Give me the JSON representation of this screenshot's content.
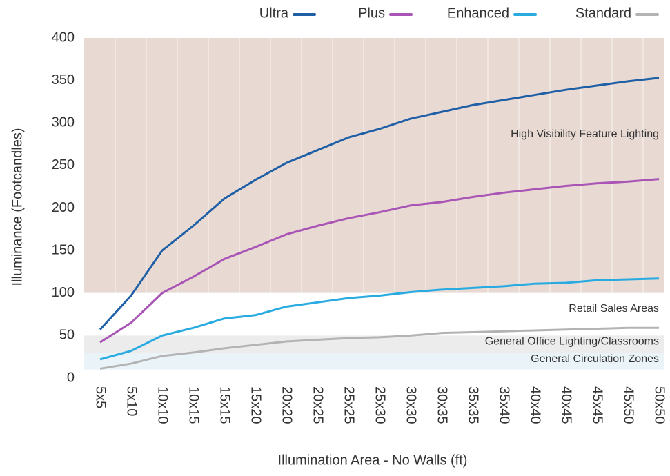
{
  "chart_data": {
    "type": "line",
    "x_label": "Illumination Area - No Walls (ft)",
    "y_label": "Illuminance (Footcandles)",
    "categories": [
      "5x5",
      "5x10",
      "10x10",
      "10x15",
      "15x15",
      "15x20",
      "20x20",
      "20x25",
      "25x25",
      "25x30",
      "30x30",
      "30x35",
      "35x35",
      "35x40",
      "40x40",
      "40x45",
      "45x45",
      "45x50",
      "50x50"
    ],
    "series": [
      {
        "name": "Ultra",
        "color": "#1f5fa6",
        "values": [
          57,
          97,
          150,
          179,
          211,
          233,
          253,
          268,
          283,
          293,
          305,
          313,
          321,
          327,
          333,
          339,
          344,
          349,
          353
        ]
      },
      {
        "name": "Plus",
        "color": "#a855b5",
        "values": [
          42,
          65,
          100,
          119,
          140,
          154,
          169,
          179,
          188,
          195,
          203,
          207,
          213,
          218,
          222,
          226,
          229,
          231,
          234
        ]
      },
      {
        "name": "Enhanced",
        "color": "#29abe2",
        "values": [
          22,
          32,
          50,
          59,
          70,
          74,
          84,
          89,
          94,
          97,
          101,
          104,
          106,
          108,
          111,
          112,
          115,
          116,
          117
        ]
      },
      {
        "name": "Standard",
        "color": "#b3b3b3",
        "values": [
          11,
          17,
          26,
          30,
          35,
          39,
          43,
          45,
          47,
          48,
          50,
          53,
          54,
          55,
          56,
          57,
          58,
          59,
          59
        ]
      }
    ],
    "zones": [
      {
        "label": "High Visibility Feature Lighting",
        "from": 100,
        "to": 400,
        "color": "#e8d9d3"
      },
      {
        "label": "Retail Sales Areas",
        "from": 50,
        "to": 100,
        "color": "#ffffff"
      },
      {
        "label": "General Office Lighting/Classrooms",
        "from": 30,
        "to": 50,
        "color": "#ececec"
      },
      {
        "label": "General Circulation Zones",
        "from": 10,
        "to": 30,
        "color": "#eaf3f8"
      }
    ],
    "ylim": [
      0,
      400
    ],
    "yticks": [
      0,
      50,
      100,
      150,
      200,
      250,
      300,
      350,
      400
    ]
  }
}
